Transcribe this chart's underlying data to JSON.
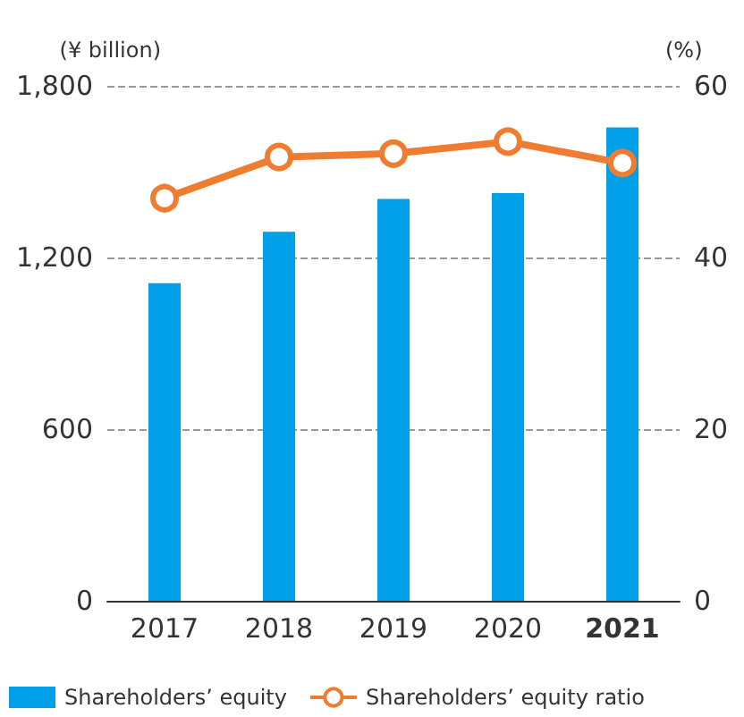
{
  "chart_data": {
    "type": "bar",
    "categories": [
      "2017",
      "2018",
      "2019",
      "2020",
      "2021"
    ],
    "ylabel": "(¥ billion)",
    "y2label": "(%)",
    "series": [
      {
        "name": "Shareholders’ equity",
        "color": "#00a0e9",
        "values": [
          1110,
          1290,
          1405,
          1425,
          1655
        ]
      },
      {
        "name": "Shareholders’ equity ratio",
        "type": "line",
        "axis": "y2",
        "color": "#ef7d31",
        "marker": "circle",
        "values": [
          46.9,
          51.7,
          52.1,
          53.5,
          51.0
        ]
      }
    ],
    "ylim": [
      0,
      1800
    ],
    "yticks": [
      0,
      {
        "value": 600,
        "label": "600"
      },
      {
        "value": 1200,
        "label": "1,200"
      },
      {
        "value": 1800,
        "label": "1,800"
      }
    ],
    "y2lim": [
      0,
      60
    ],
    "y2ticks": [
      0,
      20,
      40,
      60
    ],
    "grid": "y",
    "legend": "bottom"
  }
}
